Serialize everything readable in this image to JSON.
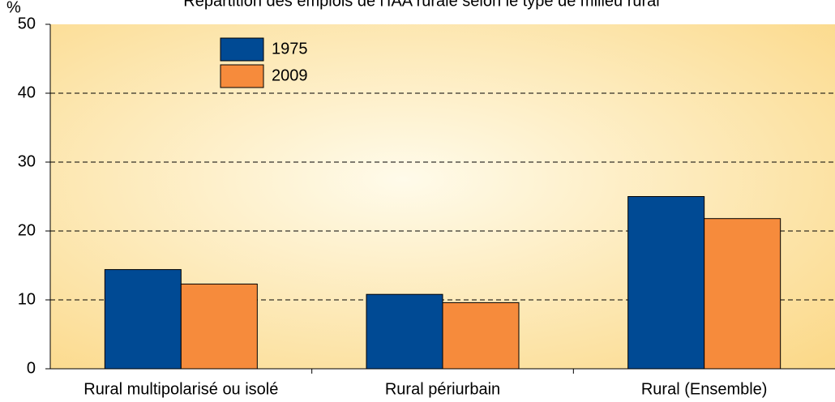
{
  "chart_data": {
    "type": "bar",
    "title": "Répartition des emplois de l'IAA rurale selon le type de milieu rural",
    "y_label": "%",
    "categories": [
      "Rural multipolarisé ou isolé",
      "Rural périurbain",
      "Rural (Ensemble)"
    ],
    "series": [
      {
        "name": "1975",
        "color": "#004a94",
        "values": [
          14.4,
          10.8,
          25
        ]
      },
      {
        "name": "2009",
        "color": "#f68b3c",
        "values": [
          12.3,
          9.6,
          21.8
        ]
      }
    ],
    "ylim": [
      0,
      50
    ],
    "yticks": [
      0,
      10,
      20,
      30,
      40,
      50
    ],
    "grid": true,
    "legend": "upper left"
  }
}
